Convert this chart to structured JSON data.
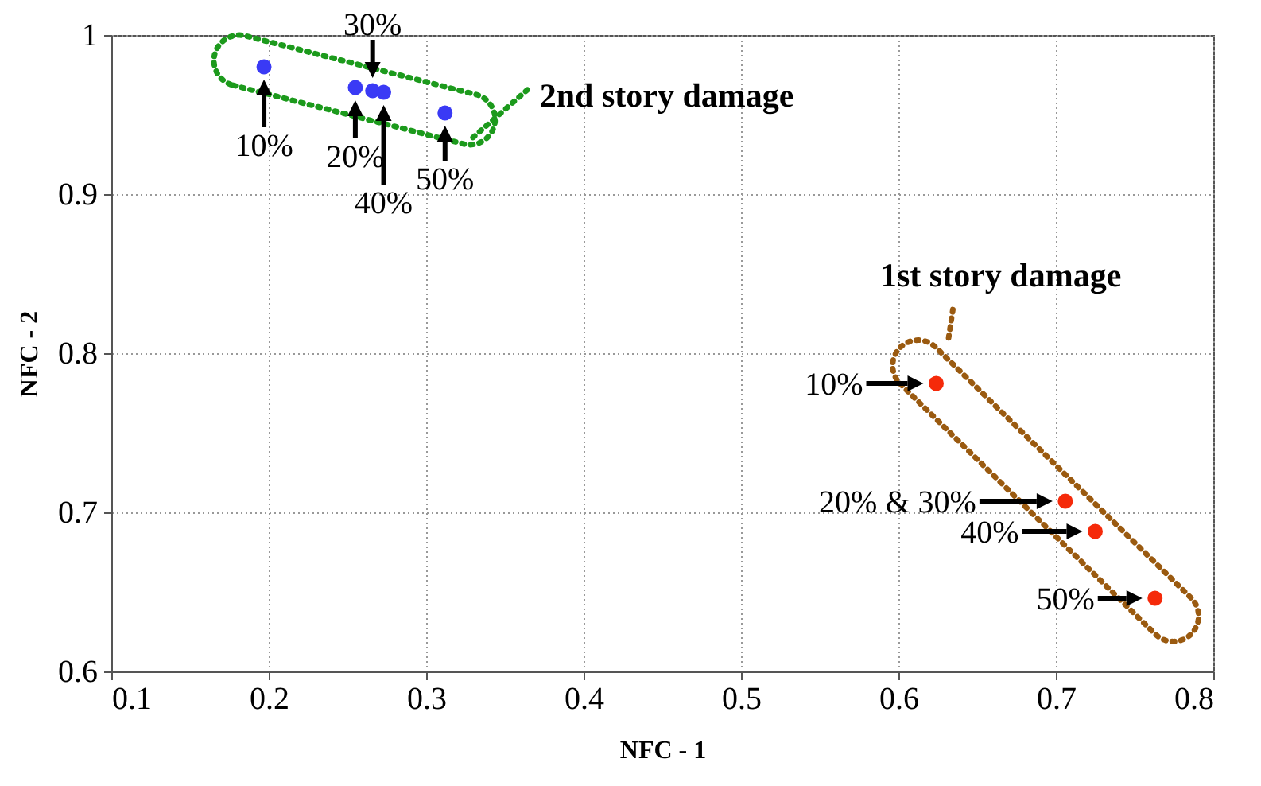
{
  "chart_data": {
    "type": "scatter",
    "xlabel": "NFC - 1",
    "ylabel": "NFC - 2",
    "xlim": [
      0.1,
      0.8
    ],
    "xticks": [
      0.1,
      0.2,
      0.3,
      0.4,
      0.5,
      0.6,
      0.7,
      0.8
    ],
    "ylim": [
      0.6,
      1
    ],
    "yticks": [
      0.6,
      0.7,
      0.8,
      0.9,
      1
    ],
    "grid": true,
    "marker": "circle",
    "series": [
      {
        "color": "#3a3af5",
        "x": [
          0.197,
          0.255,
          0.266,
          0.273,
          0.312
        ],
        "values": [
          0.98,
          0.967,
          0.965,
          0.964,
          0.951
        ]
      },
      {
        "color": "#f52a0a",
        "x": [
          0.624,
          0.706,
          0.725,
          0.763
        ],
        "values": [
          0.781,
          0.707,
          0.688,
          0.646
        ]
      }
    ],
    "annotations": [
      "2nd story damage",
      {
        "text": "10%",
        "x": 0.197,
        "y": 0.98
      },
      {
        "text": "20%",
        "x": 0.255,
        "y": 0.967
      },
      {
        "text": "30%",
        "x": 0.266,
        "y": 0.965
      },
      {
        "text": "40%",
        "x": 0.273,
        "y": 0.964
      },
      {
        "text": "50%",
        "x": 0.312,
        "y": 0.951
      },
      "1st story damage",
      {
        "text": "10%",
        "x": 0.624,
        "y": 0.781
      },
      {
        "text": "20% & 30%",
        "x": 0.706,
        "y": 0.707
      },
      {
        "text": "40%",
        "x": 0.725,
        "y": 0.688
      },
      {
        "text": "50%",
        "x": 0.763,
        "y": 0.646
      }
    ]
  }
}
